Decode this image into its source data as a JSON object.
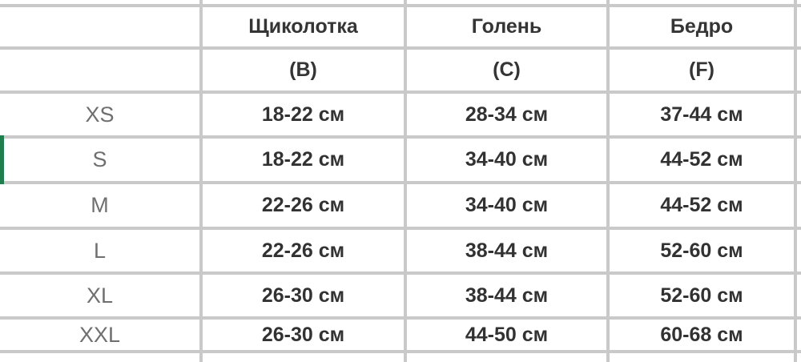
{
  "table": {
    "title": "size-chart",
    "columns": [
      {
        "name": "Щиколотка",
        "code": "(B)"
      },
      {
        "name": "Голень",
        "code": "(C)"
      },
      {
        "name": "Бедро",
        "code": "(F)"
      }
    ],
    "rows": [
      {
        "size": "XS",
        "ankle": "18-22 см",
        "shin": "28-34 см",
        "thigh": "37-44 см"
      },
      {
        "size": "S",
        "ankle": "18-22 см",
        "shin": "34-40 см",
        "thigh": "44-52 см"
      },
      {
        "size": "M",
        "ankle": "22-26 см",
        "shin": "34-40 см",
        "thigh": "44-52 см"
      },
      {
        "size": "L",
        "ankle": "22-26 см",
        "shin": "38-44 см",
        "thigh": "52-60 см"
      },
      {
        "size": "XL",
        "ankle": "26-30 см",
        "shin": "38-44 см",
        "thigh": "52-60 см"
      },
      {
        "size": "XXL",
        "ankle": "26-30 см",
        "shin": "44-50 см",
        "thigh": "60-68 см"
      }
    ],
    "colors": {
      "grid": "#c9c9c9",
      "selected_row_marker": "#1e7e4e",
      "header_text": "#353535",
      "size_text": "#6f6f6f",
      "value_text": "#323232"
    }
  }
}
